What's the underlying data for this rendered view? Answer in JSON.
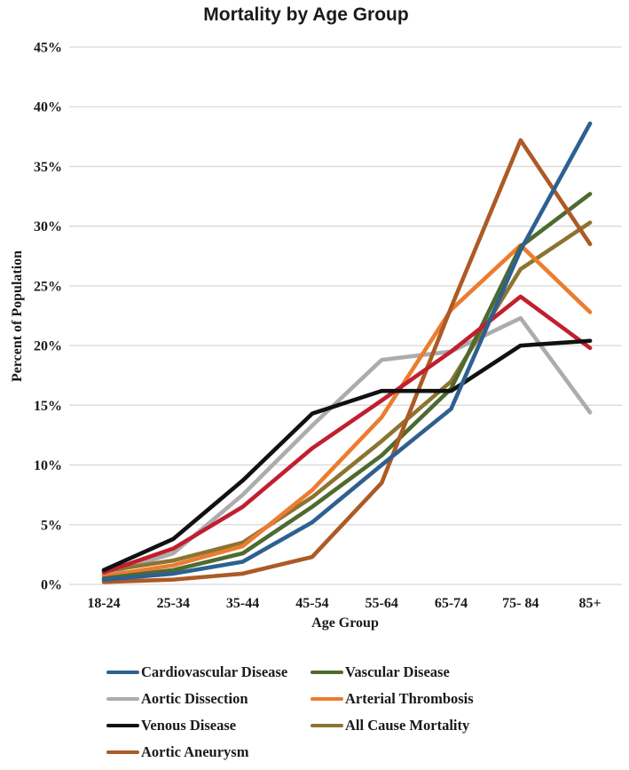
{
  "chart_data": {
    "type": "line",
    "title": "Mortality by Age Group",
    "xlabel": "Age Group",
    "ylabel": "Percent of Population",
    "categories": [
      "18-24",
      "25-34",
      "35-44",
      "45-54",
      "55-64",
      "65-74",
      "75- 84",
      "85+"
    ],
    "ylim": [
      0,
      45
    ],
    "ytick_step": 5,
    "ytick_labels": [
      "0%",
      "5%",
      "10%",
      "15%",
      "20%",
      "25%",
      "30%",
      "35%",
      "40%",
      "45%"
    ],
    "grid": true,
    "gridline_color": "#d9d9d9",
    "legend_position": "bottom",
    "series": [
      {
        "name": "Cardiovascular Disease",
        "color": "#2e6090",
        "in_legend": true,
        "values": [
          0.4,
          0.9,
          1.9,
          5.2,
          10.0,
          14.7,
          28.0,
          38.6
        ]
      },
      {
        "name": "Vascular Disease",
        "color": "#4d6b2f",
        "in_legend": true,
        "values": [
          0.5,
          1.2,
          2.6,
          6.5,
          10.8,
          16.4,
          28.3,
          32.7
        ]
      },
      {
        "name": "Aortic Dissection",
        "color": "#acacac",
        "in_legend": true,
        "values": [
          0.8,
          2.6,
          7.5,
          13.3,
          18.8,
          19.5,
          22.3,
          14.4
        ]
      },
      {
        "name": "Arterial Thrombosis",
        "color": "#ec7c30",
        "in_legend": true,
        "values": [
          0.7,
          1.6,
          3.2,
          7.9,
          14.0,
          23.0,
          28.4,
          22.8
        ]
      },
      {
        "name": "Venous Disease",
        "color": "#111111",
        "in_legend": true,
        "values": [
          1.2,
          3.8,
          8.7,
          14.3,
          16.2,
          16.2,
          20.0,
          20.4
        ]
      },
      {
        "name": "All Cause Mortality",
        "color": "#8c7430",
        "in_legend": true,
        "values": [
          1.1,
          2.0,
          3.5,
          7.3,
          12.0,
          17.0,
          26.4,
          30.3
        ]
      },
      {
        "name": "Aortic Aneurysm",
        "color": "#ac5a26",
        "in_legend": true,
        "values": [
          0.2,
          0.4,
          0.9,
          2.3,
          8.5,
          23.2,
          37.2,
          28.5
        ]
      },
      {
        "name": "unlabeled-red-series",
        "color": "#c11f2f",
        "in_legend": false,
        "values": [
          1.0,
          3.0,
          6.5,
          11.4,
          15.4,
          19.5,
          24.1,
          19.8
        ]
      }
    ],
    "draw_order": [
      2,
      5,
      3,
      1,
      6,
      7,
      4,
      0
    ]
  }
}
